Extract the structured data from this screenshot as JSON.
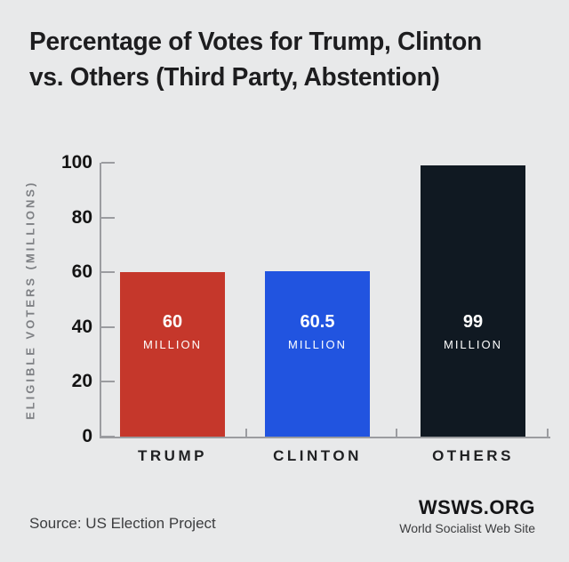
{
  "title": {
    "line1": "Percentage of Votes for Trump, Clinton",
    "line2": "vs. Others (Third Party, Abstention)"
  },
  "chart_data": {
    "type": "bar",
    "title": "Percentage of Votes for Trump, Clinton vs. Others (Third Party, Abstention)",
    "categories": [
      "TRUMP",
      "CLINTON",
      "OTHERS"
    ],
    "values": [
      60,
      60.5,
      99
    ],
    "value_labels": [
      "60",
      "60.5",
      "99"
    ],
    "value_unit": "MILLION",
    "bar_colors": [
      "#c5372b",
      "#2154e0",
      "#101922"
    ],
    "ylabel": "ELIGIBLE VOTERS (MILLIONS)",
    "xlabel": "",
    "yticks": [
      0,
      20,
      40,
      60,
      80,
      100
    ],
    "ylim": [
      0,
      100
    ],
    "grid": false,
    "legend": "none",
    "bar_label_position": "inside",
    "bar_label_color": "#ffffff"
  },
  "footer": {
    "source": "Source: US Election Project",
    "brand": "WSWS.ORG",
    "brand_subtitle": "World Socialist Web Site"
  },
  "theme": {
    "background": "#e8e9ea",
    "title_color": "#1d1d1f",
    "axis_color": "#9b9ca0",
    "tick_label_color": "#141414",
    "axis_label_color": "#7e8084",
    "category_label_color": "#1f2022",
    "source_color": "#3c3d3f",
    "brand_color": "#141416",
    "brand_subtitle_color": "#3c3d3f"
  }
}
